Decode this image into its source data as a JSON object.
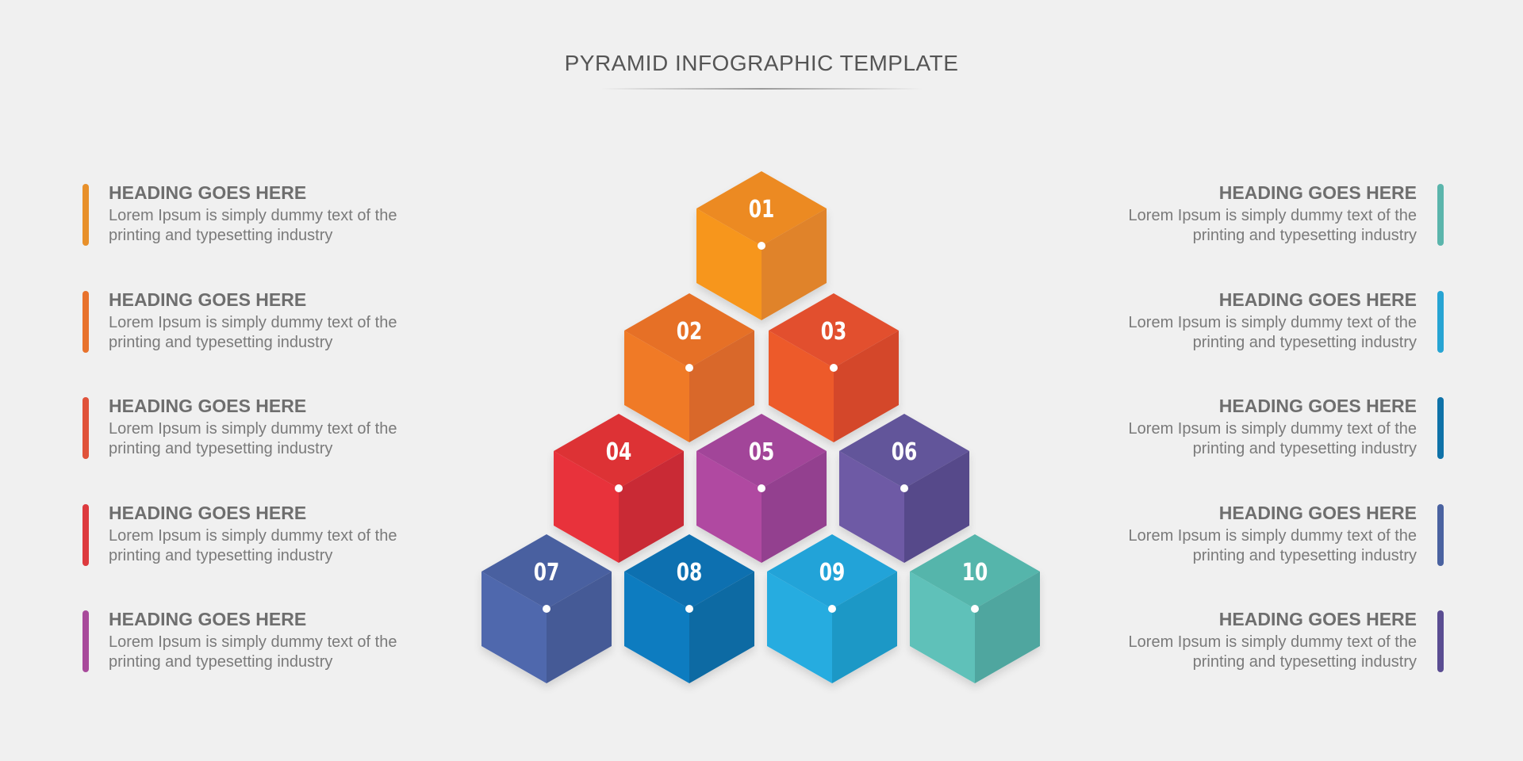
{
  "title": "PYRAMID INFOGRAPHIC TEMPLATE",
  "left_items": [
    {
      "heading": "HEADING GOES HERE",
      "line1": "Lorem Ipsum is simply dummy text of the",
      "line2": "printing and typesetting industry",
      "color": "#e8902a"
    },
    {
      "heading": "HEADING GOES HERE",
      "line1": "Lorem Ipsum is simply dummy text of the",
      "line2": "printing and typesetting industry",
      "color": "#e8722c"
    },
    {
      "heading": "HEADING GOES HERE",
      "line1": "Lorem Ipsum is simply dummy text of the",
      "line2": "printing and typesetting industry",
      "color": "#e0523a"
    },
    {
      "heading": "HEADING GOES HERE",
      "line1": "Lorem Ipsum is simply dummy text of the",
      "line2": "printing and typesetting industry",
      "color": "#dd3a3e"
    },
    {
      "heading": "HEADING GOES HERE",
      "line1": "Lorem Ipsum is simply dummy text of the",
      "line2": "printing and typesetting industry",
      "color": "#a84a9b"
    }
  ],
  "right_items": [
    {
      "heading": "HEADING GOES HERE",
      "line1": "Lorem Ipsum is simply dummy text of the",
      "line2": "printing and typesetting industry",
      "color": "#5bb5ac"
    },
    {
      "heading": "HEADING GOES HERE",
      "line1": "Lorem Ipsum is simply dummy text of the",
      "line2": "printing and typesetting industry",
      "color": "#27a4d3"
    },
    {
      "heading": "HEADING GOES HERE",
      "line1": "Lorem Ipsum is simply dummy text of the",
      "line2": "printing and typesetting industry",
      "color": "#0f72a8"
    },
    {
      "heading": "HEADING GOES HERE",
      "line1": "Lorem Ipsum is simply dummy text of the",
      "line2": "printing and typesetting industry",
      "color": "#4a62a0"
    },
    {
      "heading": "HEADING GOES HERE",
      "line1": "Lorem Ipsum is simply dummy text of the",
      "line2": "printing and typesetting industry",
      "color": "#5a4d92"
    }
  ],
  "cubes": [
    {
      "label": "01",
      "top": "#ec8a22",
      "left": "#f7961f",
      "right": "#e0832a"
    },
    {
      "label": "02",
      "top": "#e66f25",
      "left": "#f07a26",
      "right": "#d9682a"
    },
    {
      "label": "03",
      "top": "#e2502f",
      "left": "#ed5a2c",
      "right": "#d4472a"
    },
    {
      "label": "04",
      "top": "#dd3236",
      "left": "#e8333a",
      "right": "#c92c36"
    },
    {
      "label": "05",
      "top": "#a24499",
      "left": "#b04aa1",
      "right": "#93408f"
    },
    {
      "label": "06",
      "top": "#62549a",
      "left": "#6e5aa5",
      "right": "#574a8a"
    },
    {
      "label": "07",
      "top": "#4a61a0",
      "left": "#5068ad",
      "right": "#455a96"
    },
    {
      "label": "08",
      "top": "#0a70b0",
      "left": "#117bc0",
      "right": "#0e6aa3"
    },
    {
      "label": "09",
      "top": "#21a3d8",
      "left": "#28ace0",
      "right": "#1c98c6"
    },
    {
      "label": "10",
      "top": "#54b5ab",
      "left": "#5ec1b9",
      "right": "#50a69f"
    }
  ]
}
